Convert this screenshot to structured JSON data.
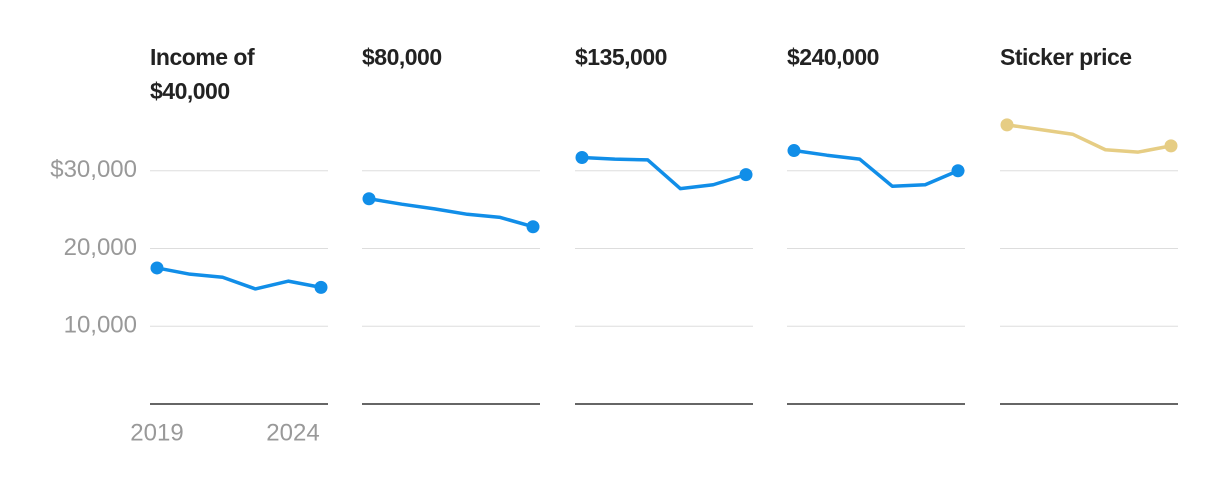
{
  "chart_data": [
    {
      "type": "line",
      "title": "Income of $40,000",
      "x": [
        2019,
        2020,
        2021,
        2022,
        2023,
        2024
      ],
      "values": [
        17500,
        16700,
        16300,
        14800,
        15800,
        15000
      ],
      "color": "#118ee8",
      "xlim": [
        2019,
        2024
      ],
      "xticks": [
        2019,
        2024
      ],
      "ylim": [
        0,
        40000
      ],
      "yticks": [
        {
          "value": 10000,
          "label": "10,000"
        },
        {
          "value": 20000,
          "label": "20,000"
        },
        {
          "value": 30000,
          "label": "$30,000"
        }
      ],
      "grid": true
    },
    {
      "type": "line",
      "title": "$80,000",
      "x": [
        2019,
        2020,
        2021,
        2022,
        2023,
        2024
      ],
      "values": [
        26400,
        25700,
        25100,
        24400,
        24000,
        22800
      ],
      "color": "#118ee8",
      "xlim": [
        2019,
        2024
      ],
      "ylim": [
        0,
        40000
      ],
      "grid": true
    },
    {
      "type": "line",
      "title": "$135,000",
      "x": [
        2019,
        2020,
        2021,
        2022,
        2023,
        2024
      ],
      "values": [
        31700,
        31500,
        31400,
        27700,
        28200,
        29500
      ],
      "color": "#118ee8",
      "xlim": [
        2019,
        2024
      ],
      "ylim": [
        0,
        40000
      ],
      "grid": true
    },
    {
      "type": "line",
      "title": "$240,000",
      "x": [
        2019,
        2020,
        2021,
        2022,
        2023,
        2024
      ],
      "values": [
        32600,
        32000,
        31500,
        28000,
        28200,
        30000
      ],
      "color": "#118ee8",
      "xlim": [
        2019,
        2024
      ],
      "ylim": [
        0,
        40000
      ],
      "grid": true
    },
    {
      "type": "line",
      "title": "Sticker price",
      "x": [
        2019,
        2020,
        2021,
        2022,
        2023,
        2024
      ],
      "values": [
        35900,
        35300,
        34700,
        32700,
        32400,
        33200
      ],
      "color": "#e6cd84",
      "xlim": [
        2019,
        2024
      ],
      "ylim": [
        0,
        40000
      ],
      "grid": true
    }
  ]
}
